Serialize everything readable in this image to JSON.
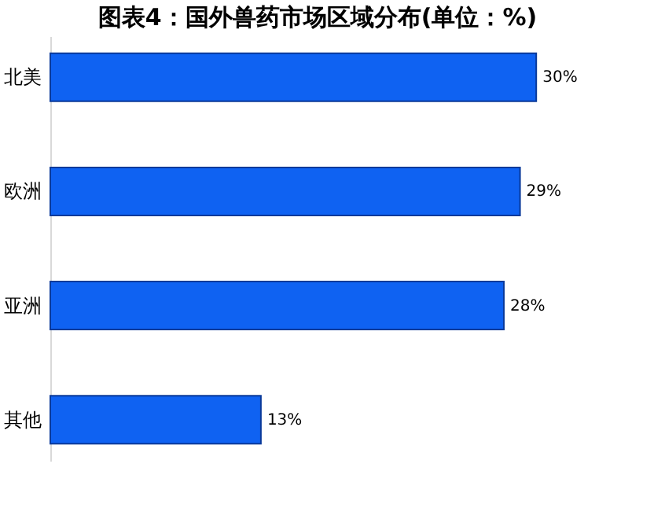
{
  "chart_data": {
    "type": "bar",
    "orientation": "horizontal",
    "title": "图表4：国外兽药市场区域分布(单位：%)",
    "categories": [
      "北美",
      "欧洲",
      "亚洲",
      "其他"
    ],
    "values": [
      30,
      29,
      28,
      13
    ],
    "value_labels": [
      "30%",
      "29%",
      "28%",
      "13%"
    ],
    "color": "#0f62f2",
    "grid": false,
    "tick_labels": "y"
  }
}
